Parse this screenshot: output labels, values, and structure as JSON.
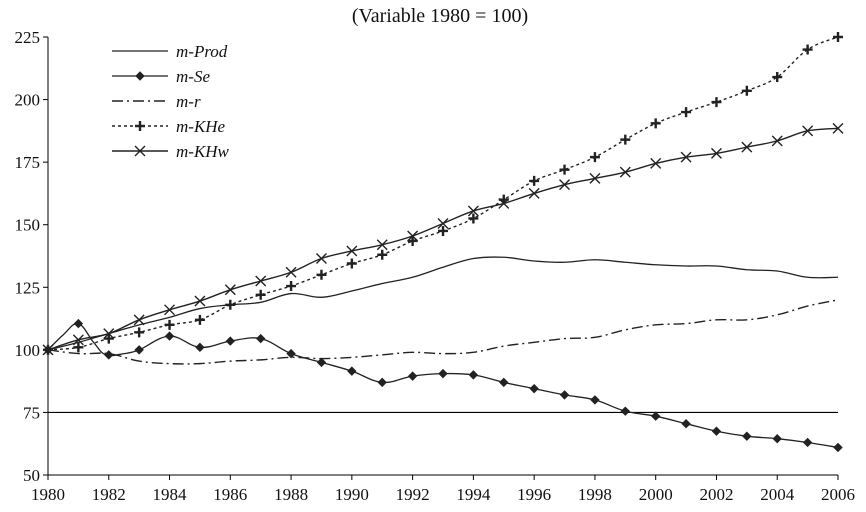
{
  "chart_data": {
    "type": "line",
    "title": "(Variable 1980 = 100)",
    "xlabel": "",
    "ylabel": "",
    "xlim": [
      1980,
      2006
    ],
    "ylim": [
      50,
      225
    ],
    "x_ticks": [
      1980,
      1982,
      1984,
      1986,
      1988,
      1990,
      1992,
      1994,
      1996,
      1998,
      2000,
      2002,
      2004,
      2006
    ],
    "y_ticks": [
      50,
      75,
      100,
      125,
      150,
      175,
      200,
      225
    ],
    "reference_line": {
      "y": 75
    },
    "legend_position": "top-left",
    "x": [
      1980,
      1981,
      1982,
      1983,
      1984,
      1985,
      1986,
      1987,
      1988,
      1989,
      1990,
      1991,
      1992,
      1993,
      1994,
      1995,
      1996,
      1997,
      1998,
      1999,
      2000,
      2001,
      2002,
      2003,
      2004,
      2005,
      2006
    ],
    "series": [
      {
        "name": "m-Prod",
        "style": "solid",
        "marker": "none",
        "values": [
          100,
          103,
          106.5,
          110,
          113,
          116.5,
          118,
          119,
          122.5,
          121,
          123.5,
          126.5,
          129,
          133,
          136.5,
          137,
          135.5,
          135,
          136,
          135,
          134,
          133.5,
          133.5,
          132,
          131.5,
          129,
          129
        ]
      },
      {
        "name": "m-Se",
        "style": "solid",
        "marker": "diamond",
        "smooth_points": [
          [
            1980,
            100
          ],
          [
            1980.5,
            106
          ],
          [
            1981,
            110.5
          ],
          [
            1981.5,
            103
          ],
          [
            1981.9,
            98
          ],
          [
            1982.5,
            98.5
          ],
          [
            1983,
            100
          ],
          [
            1984,
            105.5
          ],
          [
            1985,
            101
          ],
          [
            1986,
            103.5
          ],
          [
            1987,
            104.5
          ],
          [
            1988,
            98.5
          ],
          [
            1989,
            95
          ],
          [
            1990,
            91.5
          ],
          [
            1991,
            87
          ],
          [
            1992,
            89.5
          ],
          [
            1993,
            90.5
          ],
          [
            1994,
            90
          ],
          [
            1995,
            87
          ],
          [
            1996,
            84.5
          ],
          [
            1997,
            82
          ],
          [
            1998,
            80
          ],
          [
            1999,
            75.5
          ],
          [
            2000,
            73.5
          ],
          [
            2001,
            70.5
          ],
          [
            2002,
            67.5
          ],
          [
            2003,
            65.5
          ],
          [
            2004,
            64.5
          ],
          [
            2005,
            63
          ],
          [
            2006,
            61
          ]
        ],
        "values": [
          100,
          110.5,
          98,
          100,
          105.5,
          101,
          103.5,
          104.5,
          98.5,
          95,
          91.5,
          87,
          89.5,
          90.5,
          90,
          87,
          84.5,
          82,
          80,
          75.5,
          73.5,
          70.5,
          67.5,
          65.5,
          64.5,
          63,
          61
        ]
      },
      {
        "name": "m-r",
        "style": "dashdot",
        "marker": "none",
        "values": [
          100,
          98.5,
          98.5,
          95.5,
          94.5,
          94.5,
          95.5,
          96,
          97,
          96.5,
          97,
          98,
          99,
          98.5,
          99,
          101.5,
          103,
          104.5,
          105,
          108,
          110,
          110.5,
          112,
          112,
          114,
          117.5,
          120
        ]
      },
      {
        "name": "m-KHe",
        "style": "dotted",
        "marker": "plus",
        "values": [
          100,
          101,
          104.5,
          107,
          110,
          112,
          118,
          122,
          125.5,
          130,
          134.5,
          138,
          143.5,
          147.5,
          152.5,
          160,
          167.5,
          172,
          177,
          184,
          190.5,
          195,
          199,
          203.5,
          209,
          220,
          225
        ]
      },
      {
        "name": "m-KHw",
        "style": "solid",
        "marker": "x",
        "values": [
          100,
          104,
          106.5,
          112,
          116,
          119.5,
          124,
          127.5,
          131,
          136.5,
          139.5,
          142,
          145.5,
          150.5,
          155.5,
          158.5,
          162.5,
          166,
          168.5,
          171,
          174.5,
          177,
          178.5,
          181,
          183.5,
          187.5,
          188.5
        ]
      }
    ]
  }
}
